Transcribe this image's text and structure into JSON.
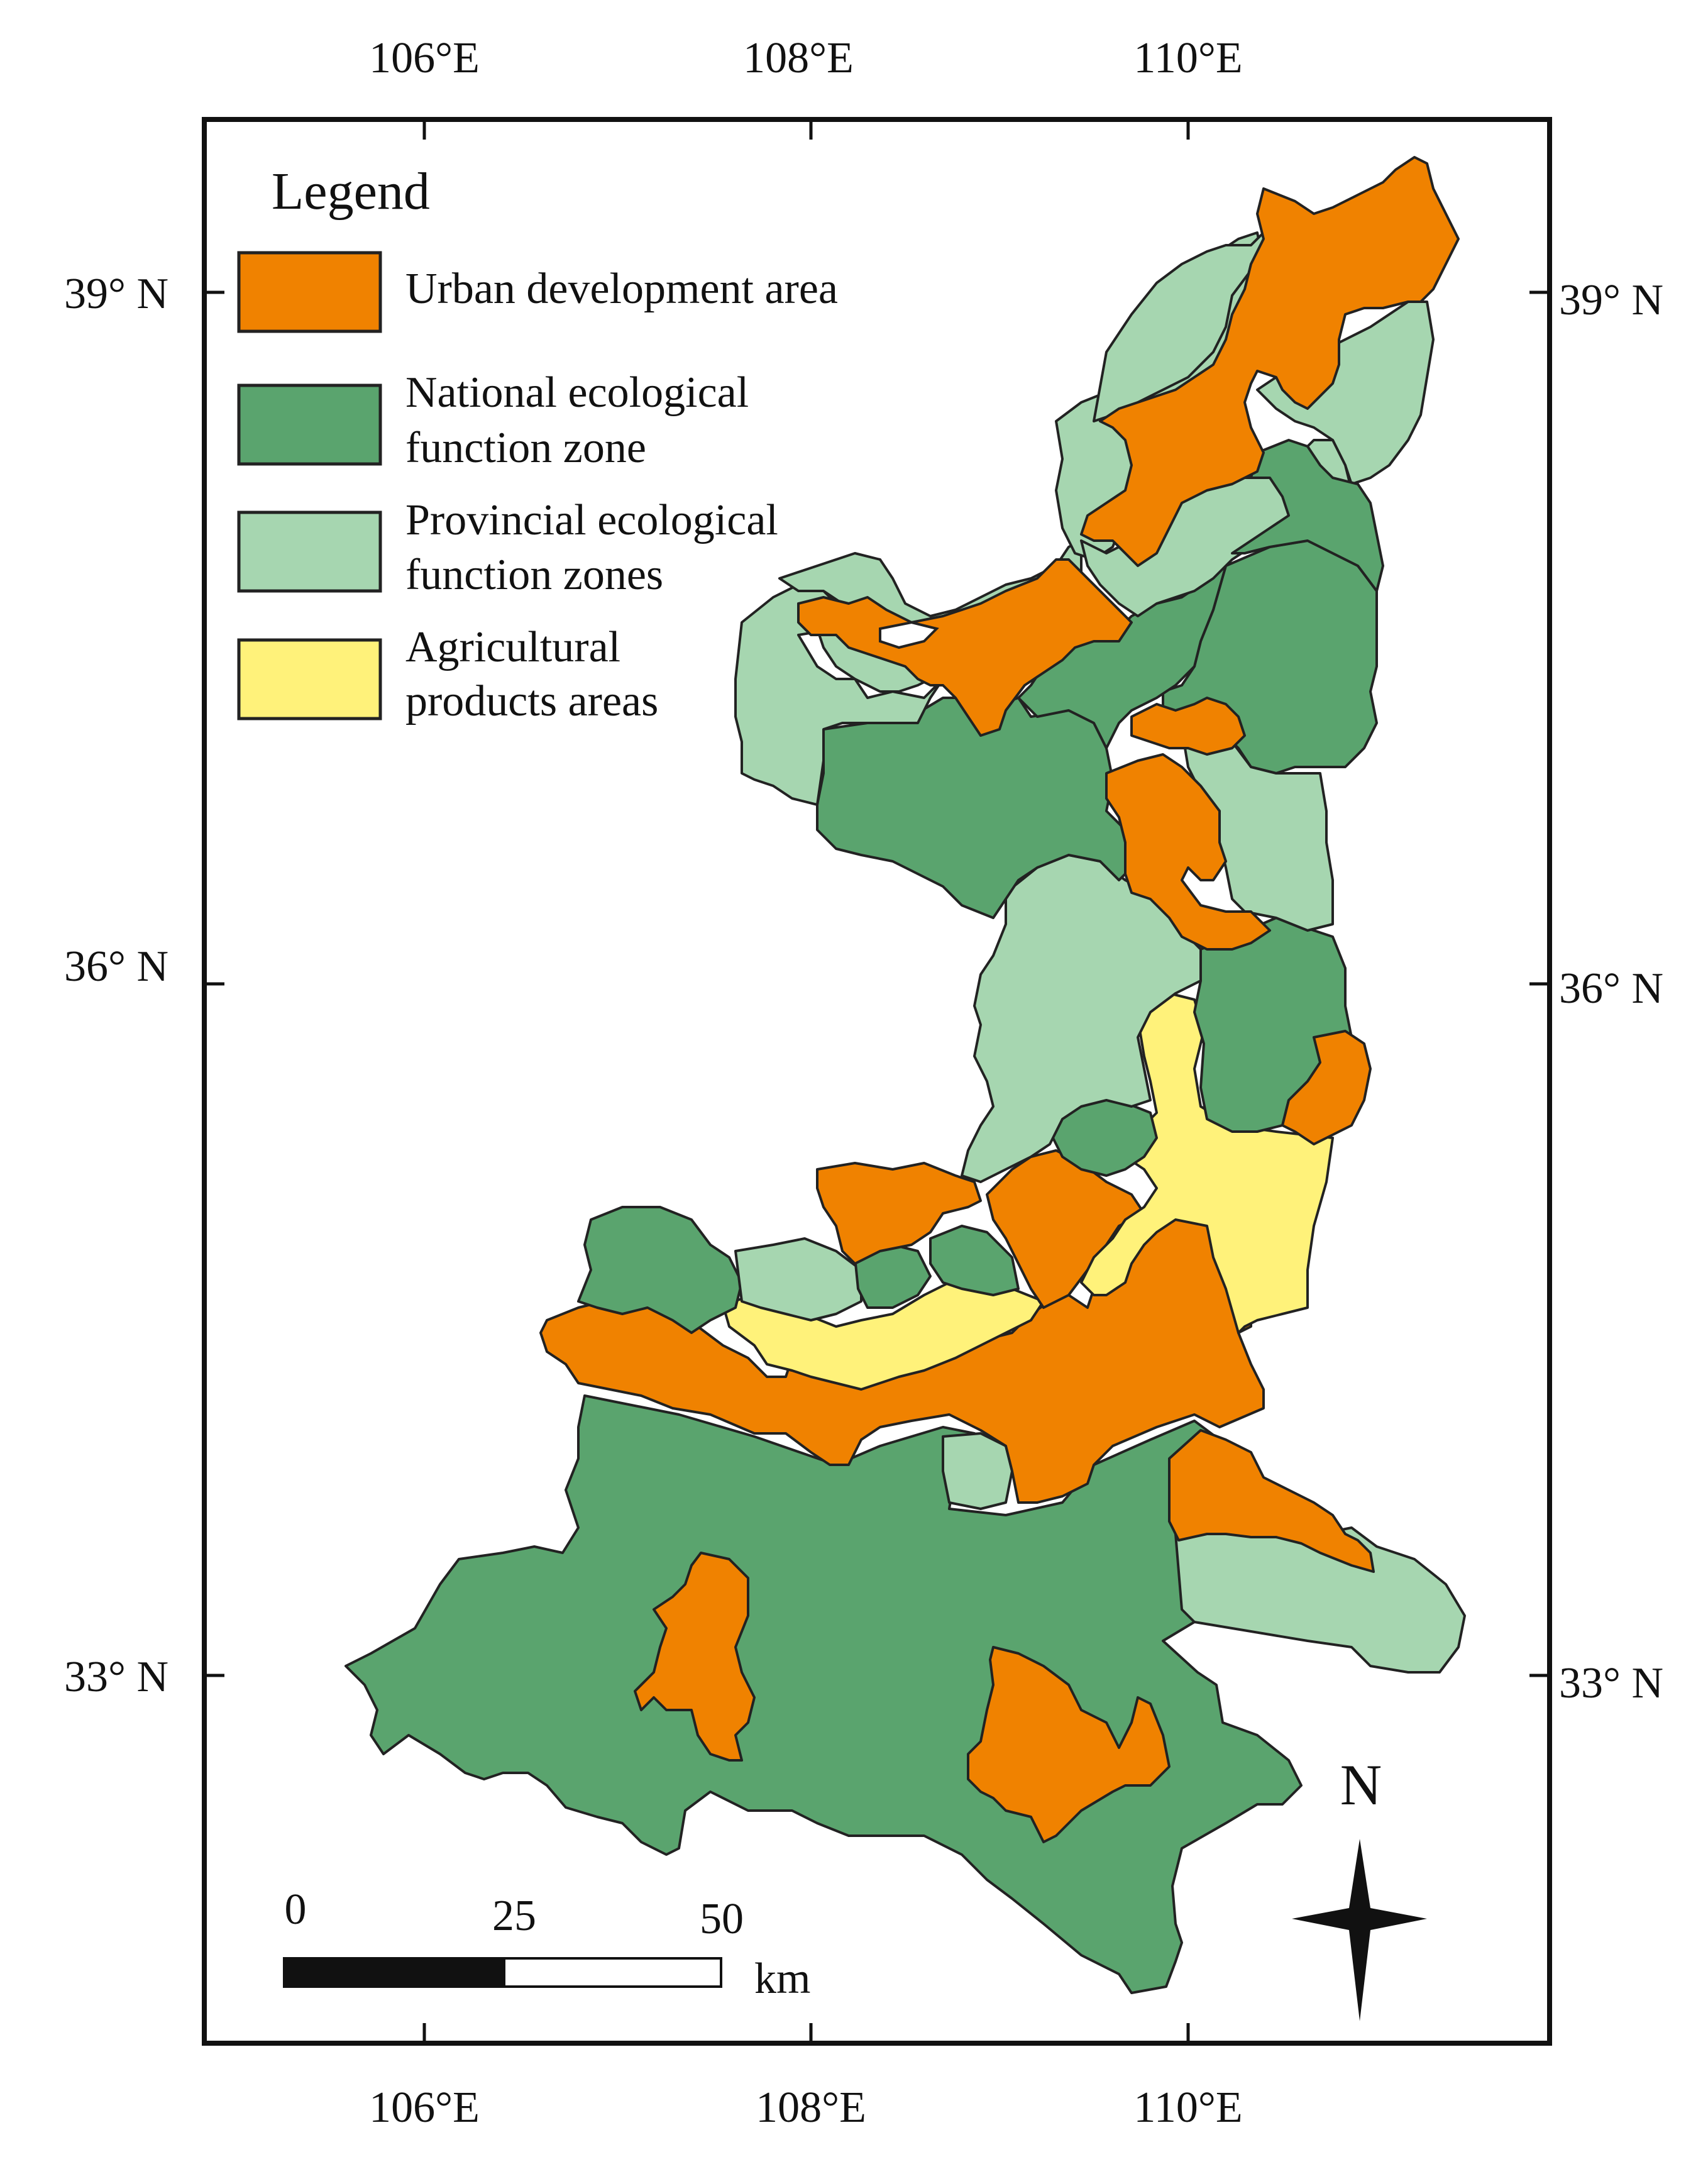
{
  "map": {
    "top_ticks": [
      "106°E",
      "108°E",
      "110°E"
    ],
    "bottom_ticks": [
      "106°E",
      "108°E",
      "110°E"
    ],
    "left_ticks": [
      "39° N",
      "36° N",
      "33° N"
    ],
    "right_ticks": [
      "39° N",
      "36° N",
      "33° N"
    ]
  },
  "legend": {
    "title": "Legend",
    "items": [
      {
        "lines": [
          "Urban development area"
        ],
        "color": "#f08200"
      },
      {
        "lines": [
          "National ecological",
          "function zone"
        ],
        "color": "#5aa46e"
      },
      {
        "lines": [
          "Provincial ecological",
          "function zones"
        ],
        "color": "#a6d6b0"
      },
      {
        "lines": [
          "Agricultural",
          "products  areas"
        ],
        "color": "#fff27a"
      }
    ]
  },
  "scale_bar": {
    "labels": [
      "0",
      "25",
      "50"
    ],
    "unit": "km"
  },
  "north_arrow": {
    "label": "N"
  },
  "colors": {
    "urban": "#f08200",
    "national": "#5aa46e",
    "provincial": "#a6d6b0",
    "agricultural": "#fff27a",
    "frame": "#111111"
  }
}
